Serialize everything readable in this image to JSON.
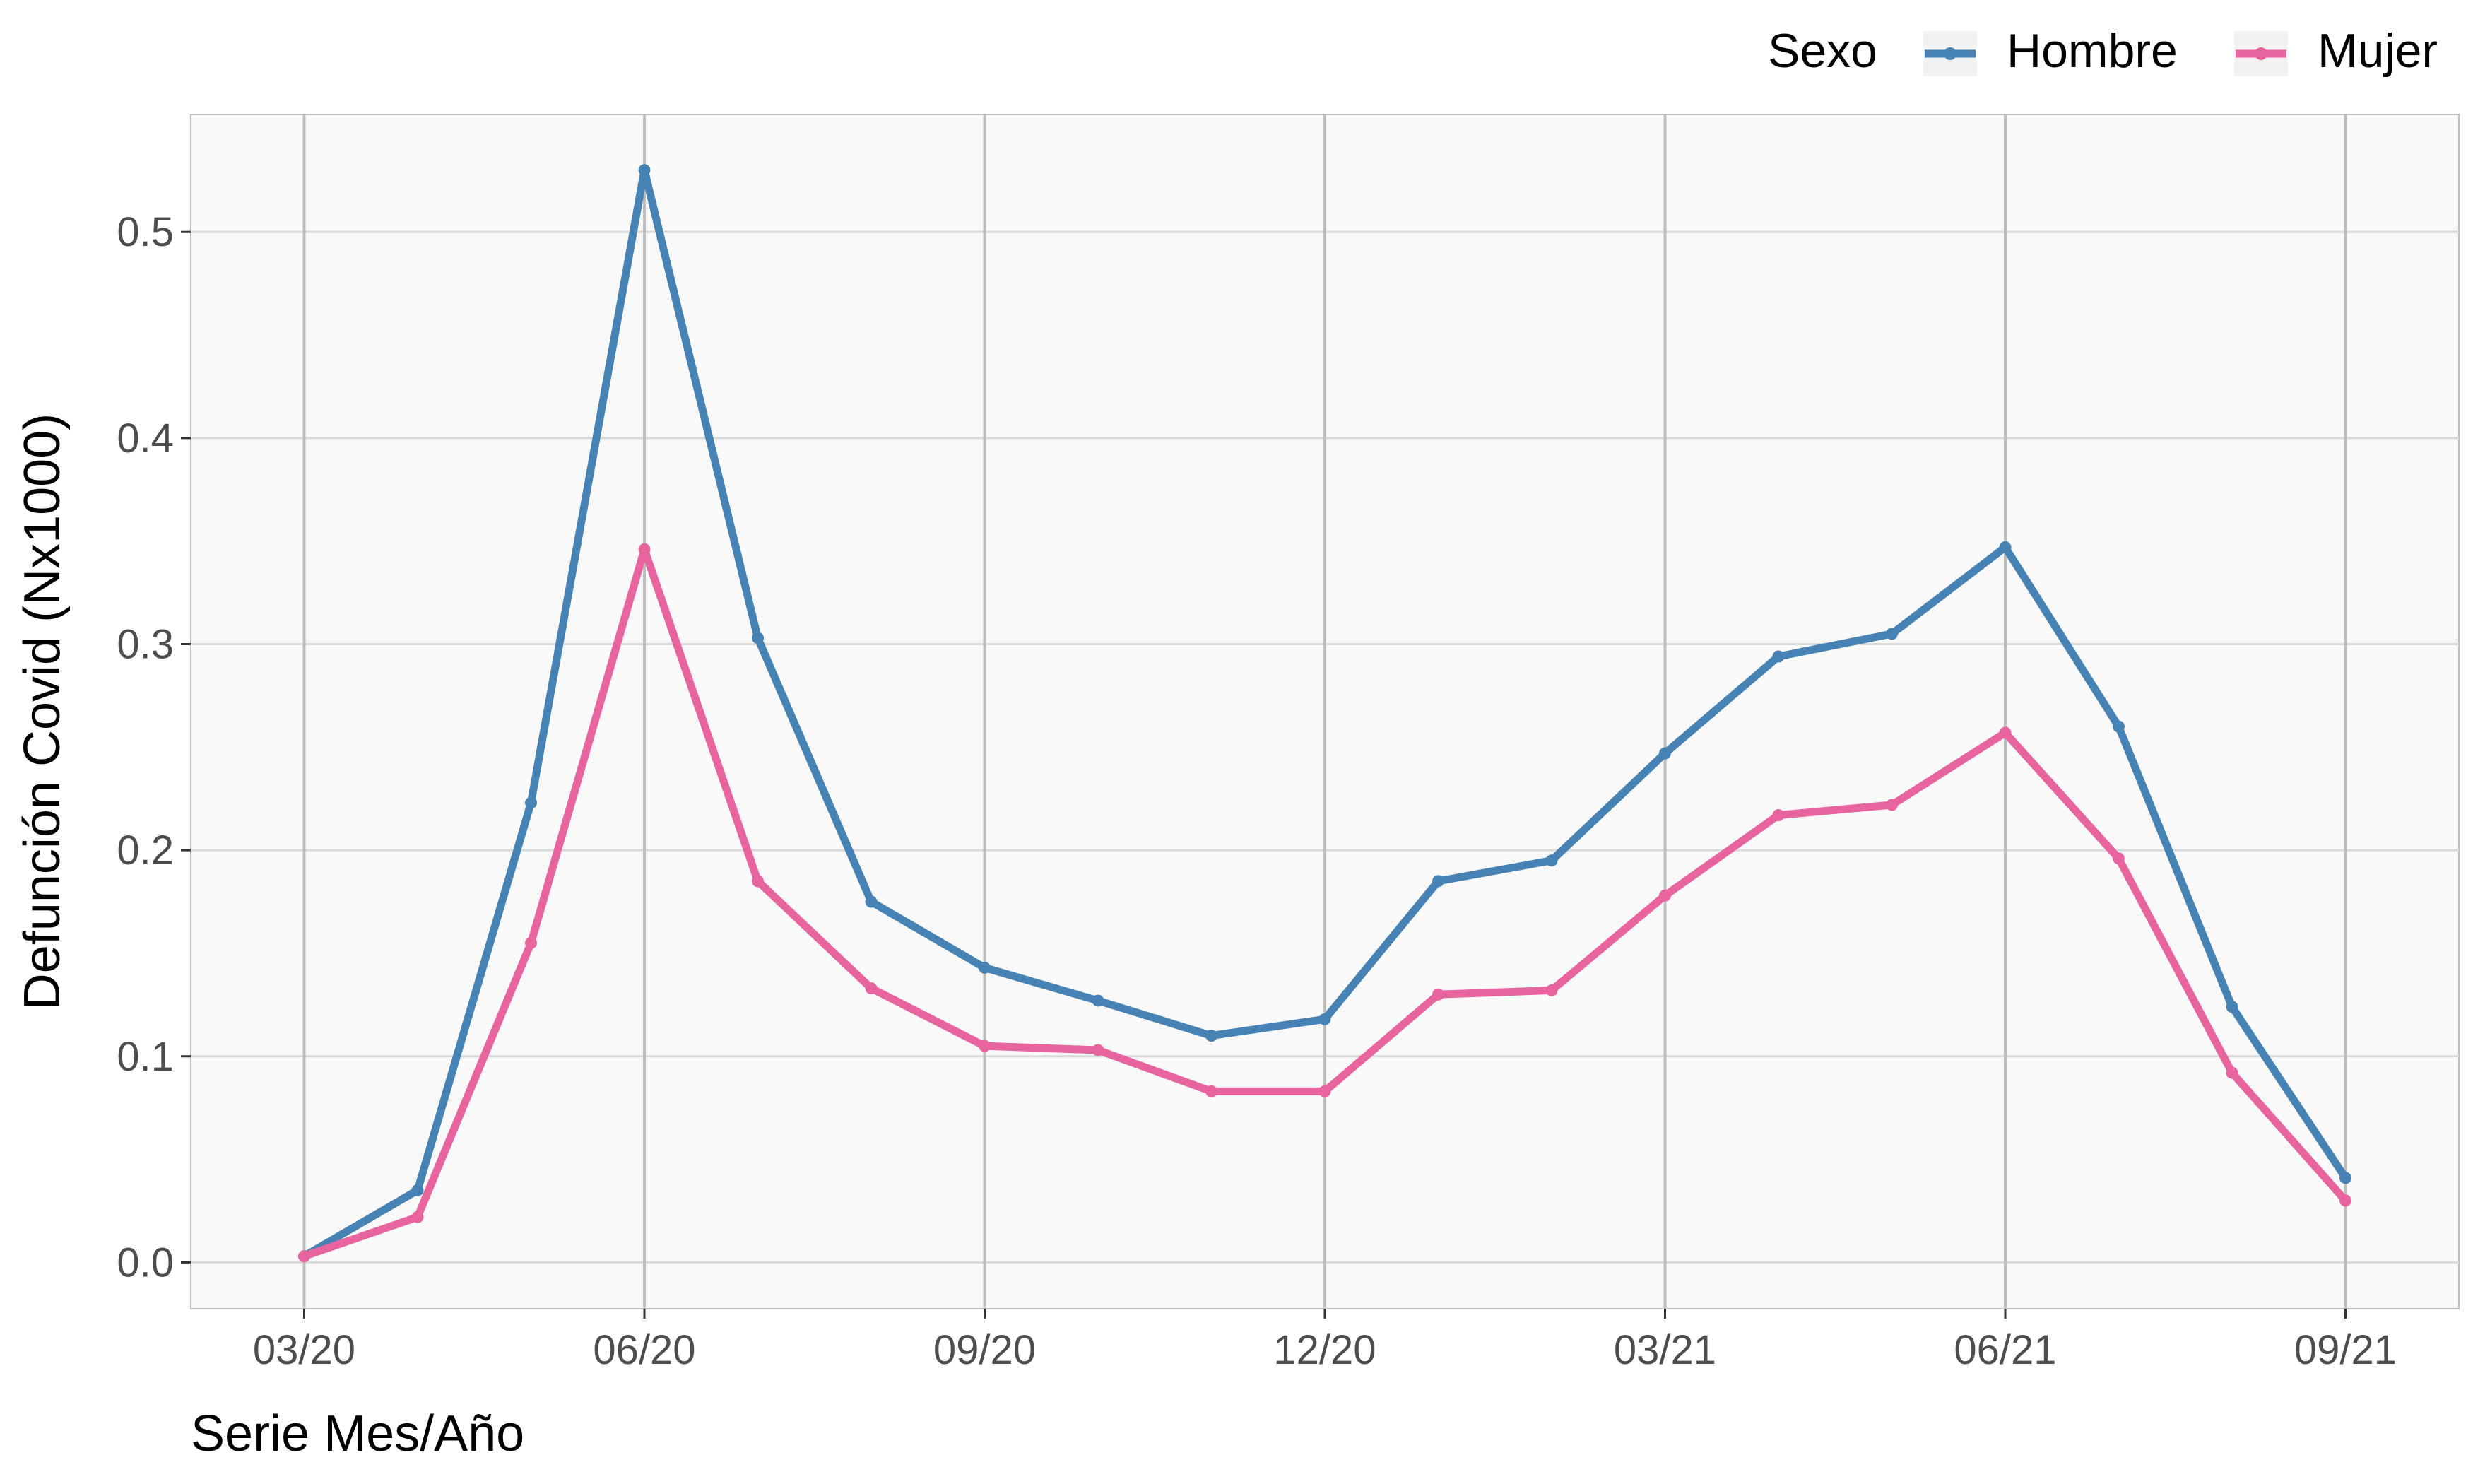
{
  "chart_data": {
    "type": "line",
    "title": "",
    "xlabel": "Serie Mes/Año",
    "ylabel": "Defunción Covid (Nx1000)",
    "x_tick_labels": [
      "03/20",
      "06/20",
      "09/20",
      "12/20",
      "03/21",
      "06/21",
      "09/21"
    ],
    "x_tick_months": [
      0,
      3,
      6,
      9,
      12,
      15,
      18
    ],
    "y_tick_labels": [
      "0.0",
      "0.1",
      "0.2",
      "0.3",
      "0.4",
      "0.5"
    ],
    "y_ticks": [
      0.0,
      0.1,
      0.2,
      0.3,
      0.4,
      0.5
    ],
    "ylim": [
      -0.0225,
      0.557
    ],
    "xlim": [
      "2020-02",
      "2021-10"
    ],
    "x": [
      "2020-03",
      "2020-04",
      "2020-05",
      "2020-06",
      "2020-07",
      "2020-08",
      "2020-09",
      "2020-10",
      "2020-11",
      "2020-12",
      "2021-01",
      "2021-02",
      "2021-03",
      "2021-04",
      "2021-05",
      "2021-06",
      "2021-07",
      "2021-08",
      "2021-09"
    ],
    "grid": true,
    "legend": {
      "title": "Sexo",
      "position": "top-right"
    },
    "series": [
      {
        "name": "Hombre",
        "color": "#4682b4",
        "values": [
          0.003,
          0.035,
          0.223,
          0.53,
          0.303,
          0.175,
          0.143,
          0.127,
          0.11,
          0.118,
          0.185,
          0.195,
          0.247,
          0.294,
          0.305,
          0.347,
          0.26,
          0.124,
          0.041
        ]
      },
      {
        "name": "Mujer",
        "color": "#e8649f",
        "values": [
          0.003,
          0.022,
          0.155,
          0.346,
          0.185,
          0.133,
          0.105,
          0.103,
          0.083,
          0.083,
          0.13,
          0.132,
          0.178,
          0.217,
          0.222,
          0.257,
          0.196,
          0.092,
          0.03
        ]
      }
    ]
  }
}
